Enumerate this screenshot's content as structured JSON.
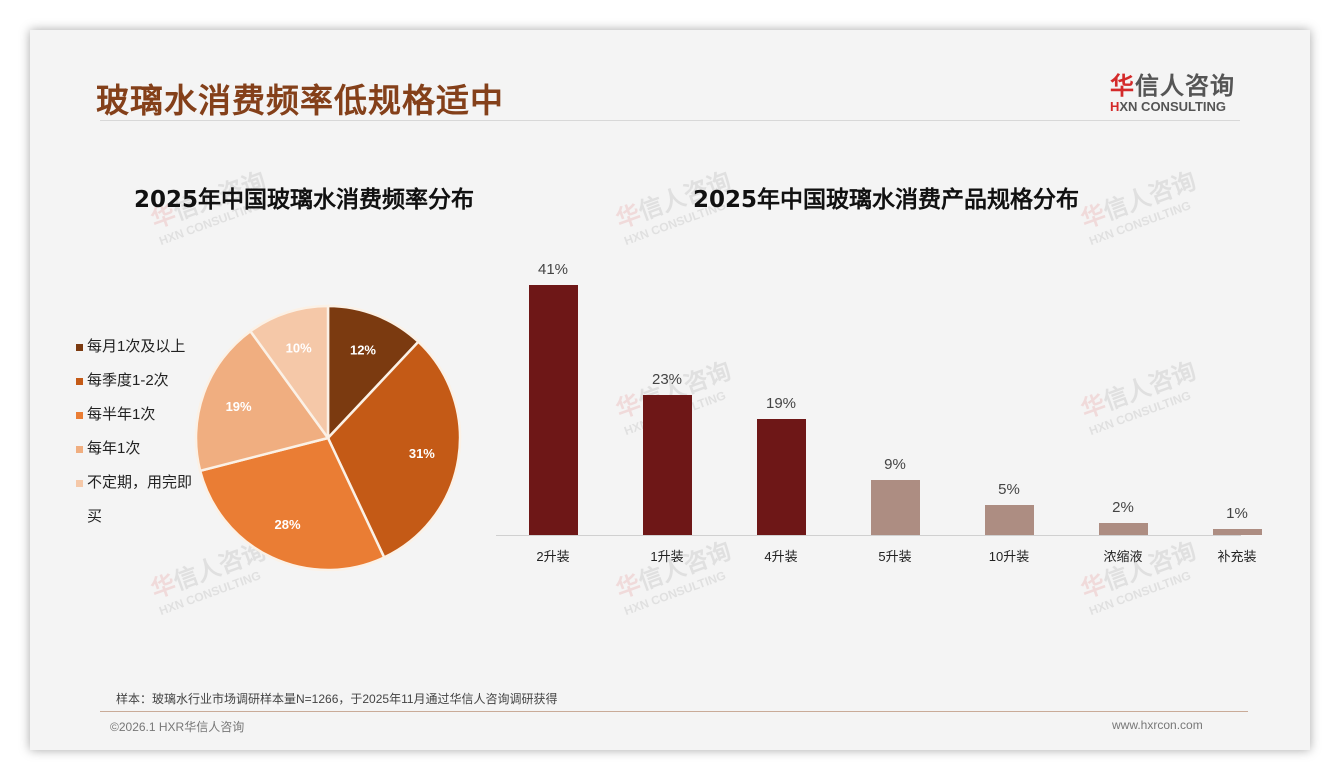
{
  "header": {
    "title": "玻璃水消费频率低规格适中",
    "logo_cn_first": "华",
    "logo_cn_rest": "信人咨询",
    "logo_en_first": "H",
    "logo_en_rest": "XN CONSULTING"
  },
  "watermark": {
    "cn_first": "华",
    "cn_rest": "信人咨询",
    "en": "HXN CONSULTING"
  },
  "colors": {
    "title": "#84401a",
    "pie": [
      "#7b3a10",
      "#c45a16",
      "#ea7d34",
      "#f0ae80",
      "#f5c8a8"
    ],
    "bar_dark": "#6e1717",
    "bar_light": "#ad8d82"
  },
  "chart_data": [
    {
      "type": "pie",
      "title": "2025年中国玻璃水消费频率分布",
      "categories": [
        "每月1次及以上",
        "每季度1-2次",
        "每半年1次",
        "每年1次",
        "不定期，用完即买"
      ],
      "values": [
        12,
        31,
        28,
        19,
        10
      ],
      "labels": [
        "12%",
        "31%",
        "28%",
        "19%",
        "10%"
      ],
      "legend_position": "left",
      "unit": "%"
    },
    {
      "type": "bar",
      "title": "2025年中国玻璃水消费产品规格分布",
      "categories": [
        "2升装",
        "1升装",
        "4升装",
        "5升装",
        "10升装",
        "浓缩液",
        "补充装"
      ],
      "values": [
        41,
        23,
        19,
        9,
        5,
        2,
        1
      ],
      "labels": [
        "41%",
        "23%",
        "19%",
        "9%",
        "5%",
        "2%",
        "1%"
      ],
      "xlabel": "",
      "ylabel": "",
      "grid": false,
      "highlight_top_n": 3,
      "unit": "%"
    }
  ],
  "footer": {
    "note": "样本：玻璃水行业市场调研样本量N=1266，于2025年11月通过华信人咨询调研获得",
    "copyright": "©2026.1 HXR华信人咨询",
    "website": "www.hxrcon.com"
  }
}
